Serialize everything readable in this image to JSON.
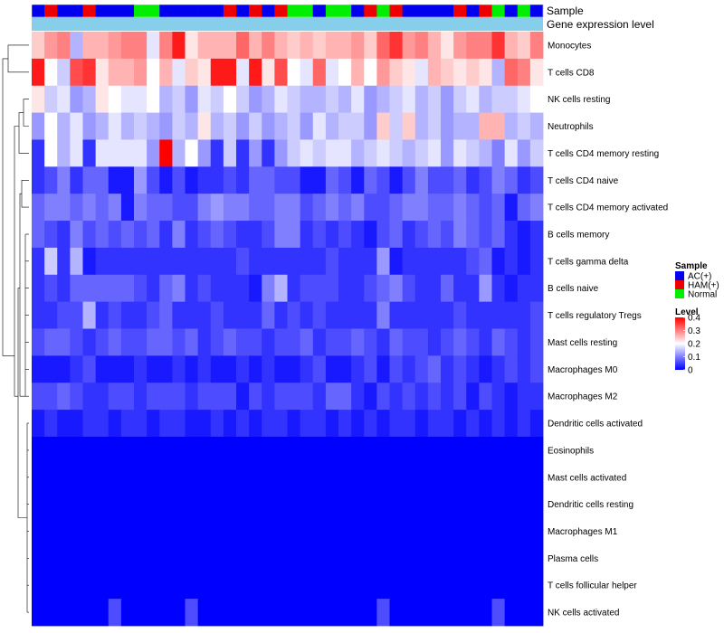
{
  "chart_data": {
    "type": "heatmap",
    "title": "",
    "annotation_tracks": [
      {
        "name": "Sample",
        "label": "Sample"
      },
      {
        "name": "Gene expression level",
        "label": "Gene expression level",
        "color": "#87ceeb"
      }
    ],
    "sample_groups": [
      "AC",
      "HAM",
      "AC",
      "AC",
      "HAM",
      "AC",
      "AC",
      "AC",
      "Normal",
      "Normal",
      "AC",
      "AC",
      "AC",
      "AC",
      "AC",
      "HAM",
      "AC",
      "HAM",
      "AC",
      "HAM",
      "Normal",
      "Normal",
      "AC",
      "Normal",
      "Normal",
      "AC",
      "HAM",
      "Normal",
      "HAM",
      "AC",
      "AC",
      "AC",
      "AC",
      "HAM",
      "AC",
      "HAM",
      "Normal",
      "AC",
      "Normal",
      "AC"
    ],
    "rows": [
      "Monocytes",
      "T cells CD8",
      "NK cells resting",
      "Neutrophils",
      "T cells CD4 memory resting",
      "T cells CD4 naive",
      "T cells CD4 memory activated",
      "B cells memory",
      "T cells gamma delta",
      "B cells naive",
      "T cells regulatory  Tregs",
      "Mast cells resting",
      "Macrophages M0",
      "Macrophages M2",
      "Dendritic cells activated",
      "Eosinophils",
      "Mast cells activated",
      "Dendritic cells resting",
      "Macrophages M1",
      "Plasma cells",
      "T cells follicular helper",
      "NK cells activated"
    ],
    "values": [
      [
        0.24,
        0.28,
        0.3,
        0.14,
        0.26,
        0.26,
        0.28,
        0.3,
        0.3,
        0.18,
        0.3,
        0.38,
        0.22,
        0.26,
        0.26,
        0.26,
        0.32,
        0.26,
        0.3,
        0.26,
        0.24,
        0.26,
        0.24,
        0.26,
        0.26,
        0.28,
        0.24,
        0.32,
        0.36,
        0.28,
        0.3,
        0.26,
        0.22,
        0.28,
        0.3,
        0.3,
        0.36,
        0.26,
        0.24,
        0.3
      ],
      [
        0.38,
        0.2,
        0.16,
        0.34,
        0.36,
        0.22,
        0.26,
        0.26,
        0.28,
        0.2,
        0.26,
        0.18,
        0.24,
        0.22,
        0.38,
        0.38,
        0.18,
        0.38,
        0.22,
        0.34,
        0.2,
        0.18,
        0.32,
        0.18,
        0.2,
        0.26,
        0.2,
        0.28,
        0.24,
        0.22,
        0.18,
        0.26,
        0.24,
        0.22,
        0.24,
        0.22,
        0.14,
        0.32,
        0.3,
        0.22
      ],
      [
        0.22,
        0.16,
        0.18,
        0.12,
        0.14,
        0.22,
        0.2,
        0.18,
        0.18,
        0.2,
        0.14,
        0.16,
        0.12,
        0.18,
        0.16,
        0.2,
        0.16,
        0.12,
        0.14,
        0.18,
        0.16,
        0.14,
        0.14,
        0.16,
        0.14,
        0.18,
        0.12,
        0.14,
        0.16,
        0.18,
        0.14,
        0.16,
        0.12,
        0.16,
        0.18,
        0.14,
        0.16,
        0.16,
        0.18,
        0.2
      ],
      [
        0.12,
        0.2,
        0.14,
        0.18,
        0.12,
        0.14,
        0.18,
        0.14,
        0.16,
        0.14,
        0.12,
        0.16,
        0.14,
        0.22,
        0.14,
        0.16,
        0.12,
        0.16,
        0.12,
        0.14,
        0.16,
        0.12,
        0.18,
        0.14,
        0.16,
        0.16,
        0.12,
        0.24,
        0.16,
        0.24,
        0.14,
        0.16,
        0.12,
        0.14,
        0.14,
        0.26,
        0.26,
        0.14,
        0.16,
        0.14
      ],
      [
        0.04,
        0.2,
        0.14,
        0.18,
        0.04,
        0.18,
        0.18,
        0.18,
        0.18,
        0.12,
        0.4,
        0.14,
        0.2,
        0.12,
        0.04,
        0.16,
        0.04,
        0.12,
        0.04,
        0.12,
        0.16,
        0.18,
        0.16,
        0.18,
        0.18,
        0.14,
        0.16,
        0.18,
        0.16,
        0.14,
        0.16,
        0.18,
        0.12,
        0.18,
        0.16,
        0.14,
        0.1,
        0.18,
        0.12,
        0.16
      ],
      [
        0.04,
        0.06,
        0.1,
        0.04,
        0.08,
        0.08,
        0.02,
        0.02,
        0.12,
        0.06,
        0.02,
        0.06,
        0.02,
        0.04,
        0.04,
        0.06,
        0.04,
        0.08,
        0.08,
        0.06,
        0.06,
        0.02,
        0.02,
        0.08,
        0.06,
        0.02,
        0.08,
        0.06,
        0.02,
        0.06,
        0.1,
        0.06,
        0.06,
        0.08,
        0.04,
        0.06,
        0.1,
        0.08,
        0.04,
        0.06
      ],
      [
        0.08,
        0.1,
        0.1,
        0.08,
        0.1,
        0.08,
        0.1,
        0.02,
        0.1,
        0.08,
        0.08,
        0.06,
        0.06,
        0.1,
        0.12,
        0.1,
        0.1,
        0.08,
        0.08,
        0.1,
        0.1,
        0.06,
        0.08,
        0.1,
        0.08,
        0.1,
        0.06,
        0.06,
        0.08,
        0.1,
        0.1,
        0.08,
        0.08,
        0.1,
        0.08,
        0.06,
        0.08,
        0.02,
        0.08,
        0.1
      ],
      [
        0.08,
        0.06,
        0.04,
        0.1,
        0.06,
        0.08,
        0.06,
        0.08,
        0.06,
        0.08,
        0.04,
        0.1,
        0.04,
        0.06,
        0.08,
        0.06,
        0.04,
        0.04,
        0.06,
        0.1,
        0.1,
        0.04,
        0.06,
        0.04,
        0.06,
        0.04,
        0.02,
        0.06,
        0.08,
        0.04,
        0.06,
        0.08,
        0.06,
        0.1,
        0.08,
        0.06,
        0.08,
        0.04,
        0.02,
        0.04
      ],
      [
        0.04,
        0.16,
        0.04,
        0.14,
        0.02,
        0.04,
        0.04,
        0.04,
        0.04,
        0.04,
        0.04,
        0.04,
        0.04,
        0.04,
        0.04,
        0.04,
        0.06,
        0.04,
        0.04,
        0.04,
        0.04,
        0.04,
        0.04,
        0.06,
        0.04,
        0.04,
        0.04,
        0.12,
        0.02,
        0.04,
        0.04,
        0.04,
        0.04,
        0.04,
        0.06,
        0.08,
        0.02,
        0.04,
        0.02,
        0.04
      ],
      [
        0.04,
        0.06,
        0.04,
        0.08,
        0.08,
        0.08,
        0.08,
        0.08,
        0.06,
        0.04,
        0.08,
        0.1,
        0.04,
        0.06,
        0.04,
        0.04,
        0.04,
        0.02,
        0.1,
        0.14,
        0.04,
        0.06,
        0.06,
        0.06,
        0.04,
        0.04,
        0.06,
        0.08,
        0.1,
        0.06,
        0.04,
        0.04,
        0.08,
        0.04,
        0.04,
        0.12,
        0.04,
        0.02,
        0.04,
        0.04
      ],
      [
        0.04,
        0.04,
        0.06,
        0.06,
        0.14,
        0.04,
        0.06,
        0.04,
        0.04,
        0.06,
        0.08,
        0.04,
        0.04,
        0.04,
        0.06,
        0.04,
        0.04,
        0.04,
        0.08,
        0.04,
        0.06,
        0.04,
        0.06,
        0.04,
        0.04,
        0.04,
        0.04,
        0.1,
        0.04,
        0.04,
        0.04,
        0.04,
        0.04,
        0.06,
        0.04,
        0.04,
        0.04,
        0.04,
        0.04,
        0.06
      ],
      [
        0.06,
        0.08,
        0.08,
        0.06,
        0.04,
        0.06,
        0.08,
        0.06,
        0.06,
        0.08,
        0.08,
        0.06,
        0.08,
        0.04,
        0.06,
        0.08,
        0.06,
        0.06,
        0.04,
        0.06,
        0.06,
        0.08,
        0.04,
        0.06,
        0.06,
        0.08,
        0.06,
        0.04,
        0.08,
        0.06,
        0.06,
        0.04,
        0.06,
        0.08,
        0.06,
        0.04,
        0.08,
        0.06,
        0.04,
        0.06
      ],
      [
        0.02,
        0.02,
        0.02,
        0.04,
        0.06,
        0.02,
        0.02,
        0.02,
        0.04,
        0.02,
        0.02,
        0.04,
        0.02,
        0.04,
        0.02,
        0.02,
        0.04,
        0.02,
        0.04,
        0.02,
        0.02,
        0.04,
        0.06,
        0.02,
        0.02,
        0.04,
        0.06,
        0.02,
        0.06,
        0.04,
        0.06,
        0.08,
        0.04,
        0.06,
        0.04,
        0.02,
        0.04,
        0.06,
        0.04,
        0.06
      ],
      [
        0.06,
        0.06,
        0.08,
        0.06,
        0.04,
        0.04,
        0.06,
        0.06,
        0.04,
        0.06,
        0.06,
        0.06,
        0.04,
        0.06,
        0.06,
        0.06,
        0.02,
        0.06,
        0.04,
        0.06,
        0.06,
        0.06,
        0.04,
        0.08,
        0.08,
        0.04,
        0.02,
        0.06,
        0.04,
        0.06,
        0.04,
        0.06,
        0.04,
        0.06,
        0.02,
        0.06,
        0.04,
        0.02,
        0.04,
        0.04
      ],
      [
        0.02,
        0.04,
        0.02,
        0.02,
        0.04,
        0.04,
        0.02,
        0.04,
        0.04,
        0.02,
        0.04,
        0.04,
        0.02,
        0.02,
        0.04,
        0.02,
        0.04,
        0.02,
        0.04,
        0.04,
        0.02,
        0.04,
        0.04,
        0.02,
        0.04,
        0.02,
        0.04,
        0.02,
        0.04,
        0.04,
        0.02,
        0.04,
        0.04,
        0.02,
        0.04,
        0.02,
        0.04,
        0.02,
        0.04,
        0.02
      ],
      [
        0.0,
        0.0,
        0.0,
        0.0,
        0.0,
        0.0,
        0.0,
        0.0,
        0.0,
        0.0,
        0.0,
        0.0,
        0.0,
        0.0,
        0.0,
        0.0,
        0.0,
        0.0,
        0.0,
        0.0,
        0.0,
        0.0,
        0.0,
        0.0,
        0.0,
        0.0,
        0.0,
        0.0,
        0.0,
        0.0,
        0.0,
        0.0,
        0.0,
        0.0,
        0.0,
        0.0,
        0.0,
        0.0,
        0.0,
        0.0
      ],
      [
        0.0,
        0.0,
        0.0,
        0.0,
        0.0,
        0.0,
        0.0,
        0.0,
        0.0,
        0.0,
        0.0,
        0.0,
        0.0,
        0.0,
        0.0,
        0.0,
        0.0,
        0.0,
        0.0,
        0.0,
        0.0,
        0.0,
        0.0,
        0.0,
        0.0,
        0.0,
        0.0,
        0.0,
        0.0,
        0.0,
        0.0,
        0.0,
        0.0,
        0.0,
        0.0,
        0.0,
        0.0,
        0.0,
        0.0,
        0.0
      ],
      [
        0.0,
        0.0,
        0.0,
        0.0,
        0.0,
        0.0,
        0.0,
        0.0,
        0.0,
        0.0,
        0.0,
        0.0,
        0.0,
        0.0,
        0.0,
        0.0,
        0.0,
        0.0,
        0.0,
        0.0,
        0.0,
        0.0,
        0.0,
        0.0,
        0.0,
        0.0,
        0.0,
        0.0,
        0.0,
        0.0,
        0.0,
        0.0,
        0.0,
        0.0,
        0.0,
        0.0,
        0.0,
        0.0,
        0.0,
        0.0
      ],
      [
        0.0,
        0.0,
        0.0,
        0.0,
        0.0,
        0.0,
        0.0,
        0.0,
        0.0,
        0.0,
        0.0,
        0.0,
        0.0,
        0.0,
        0.0,
        0.0,
        0.0,
        0.0,
        0.0,
        0.0,
        0.0,
        0.0,
        0.0,
        0.0,
        0.0,
        0.0,
        0.0,
        0.0,
        0.0,
        0.0,
        0.0,
        0.0,
        0.0,
        0.0,
        0.0,
        0.0,
        0.0,
        0.0,
        0.0,
        0.0
      ],
      [
        0.0,
        0.0,
        0.0,
        0.0,
        0.0,
        0.0,
        0.0,
        0.0,
        0.0,
        0.0,
        0.0,
        0.0,
        0.0,
        0.0,
        0.0,
        0.0,
        0.0,
        0.0,
        0.0,
        0.0,
        0.0,
        0.0,
        0.0,
        0.0,
        0.0,
        0.0,
        0.0,
        0.0,
        0.0,
        0.0,
        0.0,
        0.0,
        0.0,
        0.0,
        0.0,
        0.0,
        0.0,
        0.0,
        0.0,
        0.0
      ],
      [
        0.0,
        0.0,
        0.0,
        0.0,
        0.0,
        0.0,
        0.0,
        0.0,
        0.0,
        0.0,
        0.0,
        0.0,
        0.0,
        0.0,
        0.0,
        0.0,
        0.0,
        0.0,
        0.0,
        0.0,
        0.0,
        0.0,
        0.0,
        0.0,
        0.0,
        0.0,
        0.0,
        0.0,
        0.0,
        0.0,
        0.0,
        0.0,
        0.0,
        0.0,
        0.0,
        0.0,
        0.0,
        0.0,
        0.0,
        0.0
      ],
      [
        0.0,
        0.0,
        0.0,
        0.0,
        0.0,
        0.0,
        0.06,
        0.0,
        0.0,
        0.0,
        0.0,
        0.0,
        0.06,
        0.0,
        0.0,
        0.0,
        0.0,
        0.0,
        0.0,
        0.0,
        0.0,
        0.0,
        0.0,
        0.0,
        0.0,
        0.0,
        0.0,
        0.06,
        0.0,
        0.0,
        0.0,
        0.0,
        0.0,
        0.0,
        0.0,
        0.0,
        0.06,
        0.0,
        0.0,
        0.0
      ]
    ],
    "color_scale": {
      "min": 0,
      "max": 0.4,
      "low_color": "#0000ff",
      "mid_color": "#ffffff",
      "high_color": "#ff0000",
      "mid_value": 0.2
    },
    "legends": {
      "sample": {
        "title": "Sample",
        "entries": [
          {
            "key": "AC",
            "label": "AC(+)",
            "color": "#0000ee"
          },
          {
            "key": "HAM",
            "label": "HAM(+)",
            "color": "#ee0000"
          },
          {
            "key": "Normal",
            "label": "Normal",
            "color": "#00ee00"
          }
        ]
      },
      "level": {
        "title": "Level",
        "ticks": [
          0.4,
          0.3,
          0.2,
          0.1,
          0
        ],
        "tick_labels": [
          "0.4",
          "0.3",
          "0.2",
          "0.1",
          "0"
        ]
      }
    },
    "row_dendrogram": true
  }
}
